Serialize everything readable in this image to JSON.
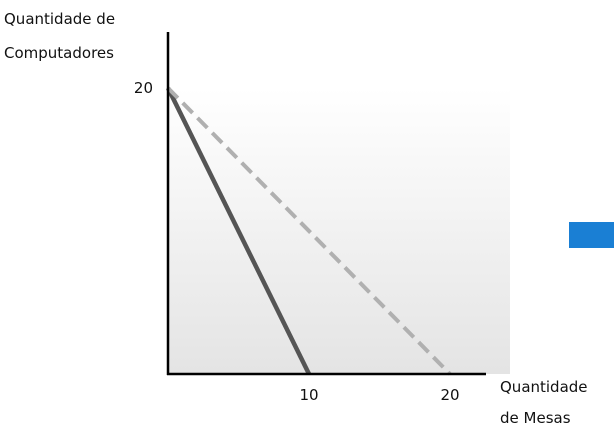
{
  "chart_data": {
    "type": "line",
    "title": "",
    "ylabel_lines": [
      "Quantidade de",
      "Computadores"
    ],
    "xlabel_lines": [
      "Quantidade",
      "de Mesas"
    ],
    "xlim": [
      0,
      20
    ],
    "ylim": [
      0,
      20
    ],
    "x_ticks": [
      {
        "value": 10,
        "label": "10"
      },
      {
        "value": 20,
        "label": "20"
      }
    ],
    "y_ticks": [
      {
        "value": 20,
        "label": "20"
      }
    ],
    "series": [
      {
        "style": "solid",
        "color": "#555555",
        "points": [
          [
            0,
            20
          ],
          [
            10,
            0
          ]
        ]
      },
      {
        "style": "dashed",
        "color": "#b0b0b0",
        "points": [
          [
            0,
            20
          ],
          [
            20,
            0
          ]
        ]
      }
    ],
    "plot_background": "light gray gradient",
    "accent_color": "#1a7fd4"
  }
}
